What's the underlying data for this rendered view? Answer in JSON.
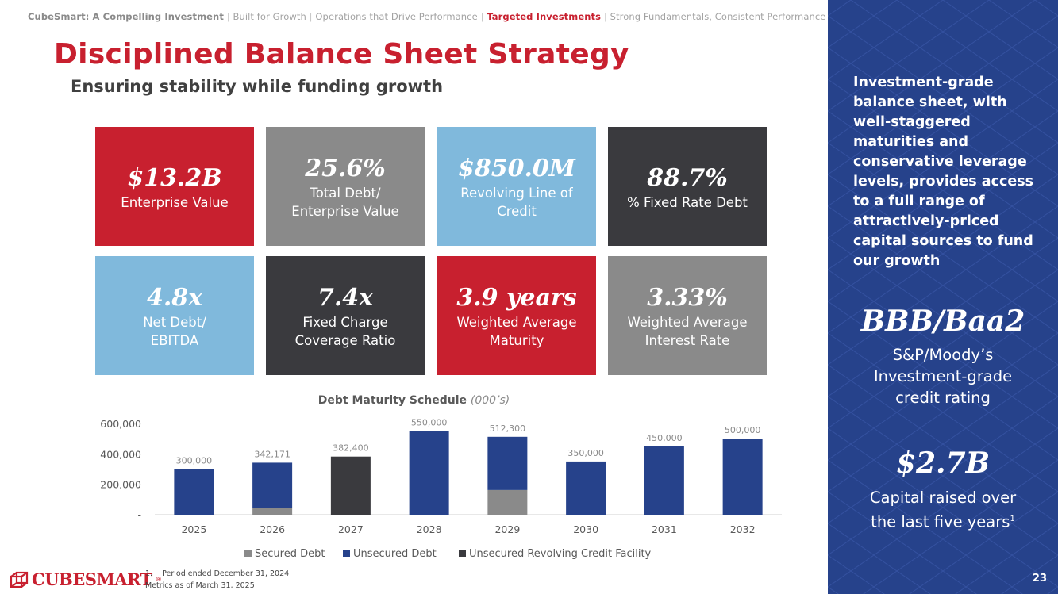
{
  "breadcrumb": {
    "items": [
      {
        "label": "CubeSmart: A Compelling Investment"
      },
      {
        "label": "Built for Growth"
      },
      {
        "label": "Operations that Drive Performance"
      },
      {
        "label": "Targeted Investments"
      },
      {
        "label": "Strong Fundamentals, Consistent Performance"
      }
    ],
    "separator": "|"
  },
  "title": "Disciplined Balance Sheet Strategy",
  "subtitle": "Ensuring stability while funding growth",
  "tiles": [
    {
      "value": "$13.2B",
      "label": "Enterprise Value",
      "color": "#c8202f"
    },
    {
      "value": "25.6%",
      "label": "Total Debt/ Enterprise Value",
      "color": "#8a8a8a"
    },
    {
      "value": "$850.0M",
      "label": "Revolving Line of Credit",
      "color": "#80b9dc"
    },
    {
      "value": "88.7%",
      "label": "% Fixed Rate Debt",
      "color": "#3a3a3e"
    },
    {
      "value": "4.8x",
      "label": "Net Debt/ EBITDA",
      "color": "#80b9dc"
    },
    {
      "value": "7.4x",
      "label": "Fixed Charge Coverage Ratio",
      "color": "#3a3a3e"
    },
    {
      "value": "3.9 years",
      "label": "Weighted Average Maturity",
      "color": "#c8202f"
    },
    {
      "value": "3.33%",
      "label": "Weighted Average Interest Rate",
      "color": "#8a8a8a"
    }
  ],
  "sidebar": {
    "description": "Investment-grade balance sheet, with well-staggered maturities and conservative leverage levels, provides access to a full range of attractively-priced capital sources to fund our growth",
    "rating": "BBB/Baa2",
    "rating_label_1": "S&P/Moody’s",
    "rating_label_2": "Investment-grade",
    "rating_label_3": "credit rating",
    "capital": "$2.7B",
    "capital_label_1": "Capital raised over",
    "capital_label_2": "the last five years",
    "capital_footnote_mark": "1",
    "page_number": "23"
  },
  "chart_data": {
    "type": "bar",
    "stacked": true,
    "title": "Debt Maturity Schedule",
    "title_unit": "(000’s)",
    "categories": [
      "2025",
      "2026",
      "2027",
      "2028",
      "2029",
      "2030",
      "2031",
      "2032"
    ],
    "series": [
      {
        "name": "Secured Debt",
        "color": "#8a8a8a",
        "values": [
          0,
          42171,
          0,
          0,
          162300,
          0,
          0,
          0
        ]
      },
      {
        "name": "Unsecured Debt",
        "color": "#26428b",
        "values": [
          300000,
          300000,
          0,
          550000,
          350000,
          350000,
          450000,
          500000
        ]
      },
      {
        "name": "Unsecured Revolving Credit Facility",
        "color": "#3a3a3e",
        "values": [
          0,
          0,
          382400,
          0,
          0,
          0,
          0,
          0
        ]
      }
    ],
    "totals_labels": [
      "300,000",
      "342,171",
      "382,400",
      "550,000",
      "512,300",
      "350,000",
      "450,000",
      "500,000"
    ],
    "totals": [
      300000,
      342171,
      382400,
      550000,
      512300,
      350000,
      450000,
      500000
    ],
    "yticks": [
      0,
      200000,
      400000,
      600000
    ],
    "ytick_labels": [
      "-",
      "200,000",
      "400,000",
      "600,000"
    ],
    "ylim": [
      0,
      600000
    ],
    "legend_position": "bottom"
  },
  "footnotes": {
    "note1": "1.    Period ended December 31, 2024",
    "note2": "Metrics as of March 31, 2025"
  },
  "logo": {
    "text": "CUBESMART",
    "tm": "®"
  }
}
